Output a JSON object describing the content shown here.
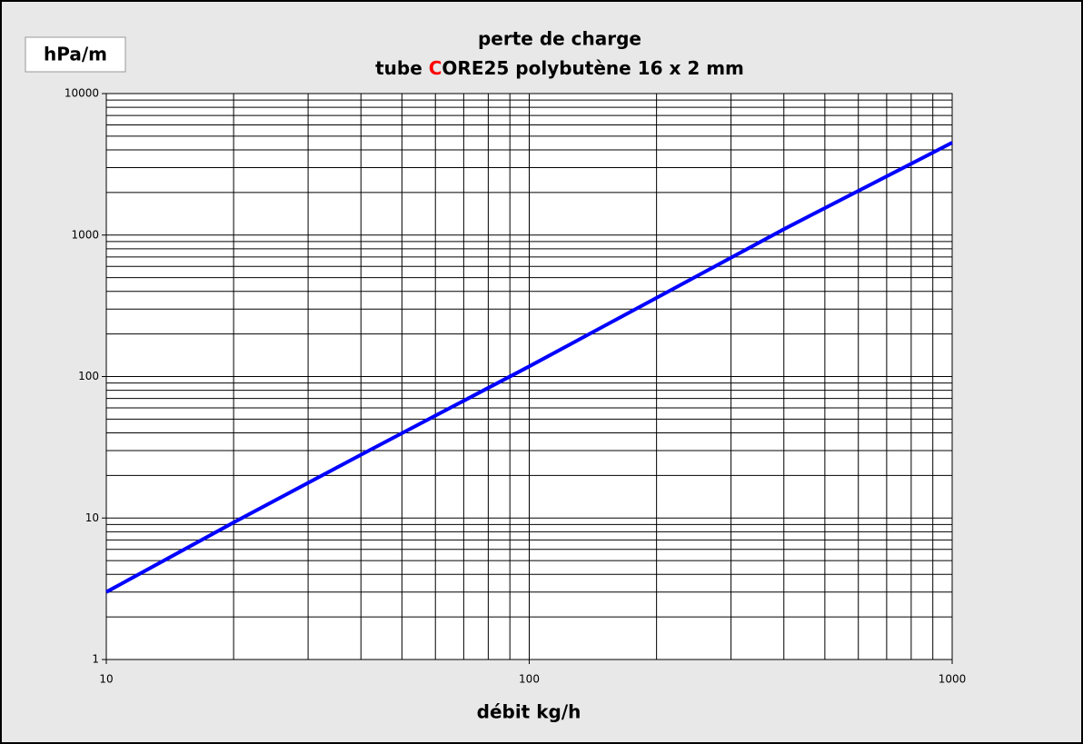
{
  "chart_data": {
    "type": "line",
    "title": [
      "perte de charge",
      "tube CORE25 polybutène 16 x 2 mm"
    ],
    "title_highlight": {
      "text": "C",
      "color": "#ff0000"
    },
    "y_label": "hPa/m",
    "x_label": "débit kg/h",
    "x": [
      10,
      20,
      40,
      100,
      200,
      400,
      1000
    ],
    "series": [
      {
        "name": "perte de charge",
        "color": "#0000ff",
        "values": [
          3,
          9.3,
          28,
          118,
          360,
          1100,
          4500
        ]
      }
    ],
    "xlim": [
      10,
      1000
    ],
    "ylim": [
      1,
      10000
    ],
    "xticks": [
      10,
      100,
      1000
    ],
    "yticks": [
      1,
      10,
      100,
      1000,
      10000
    ],
    "xminor_ticks": [
      20,
      30,
      40,
      50,
      60,
      70,
      80,
      90,
      200,
      300,
      400,
      500,
      600,
      700,
      800,
      900
    ],
    "yminor_ticks": [
      2,
      3,
      4,
      5,
      6,
      7,
      8,
      9,
      20,
      30,
      40,
      50,
      60,
      70,
      80,
      90,
      200,
      300,
      400,
      500,
      600,
      700,
      800,
      900,
      2000,
      3000,
      4000,
      5000,
      6000,
      7000,
      8000,
      9000
    ],
    "xlog": true,
    "ylog": true,
    "grid": true
  }
}
